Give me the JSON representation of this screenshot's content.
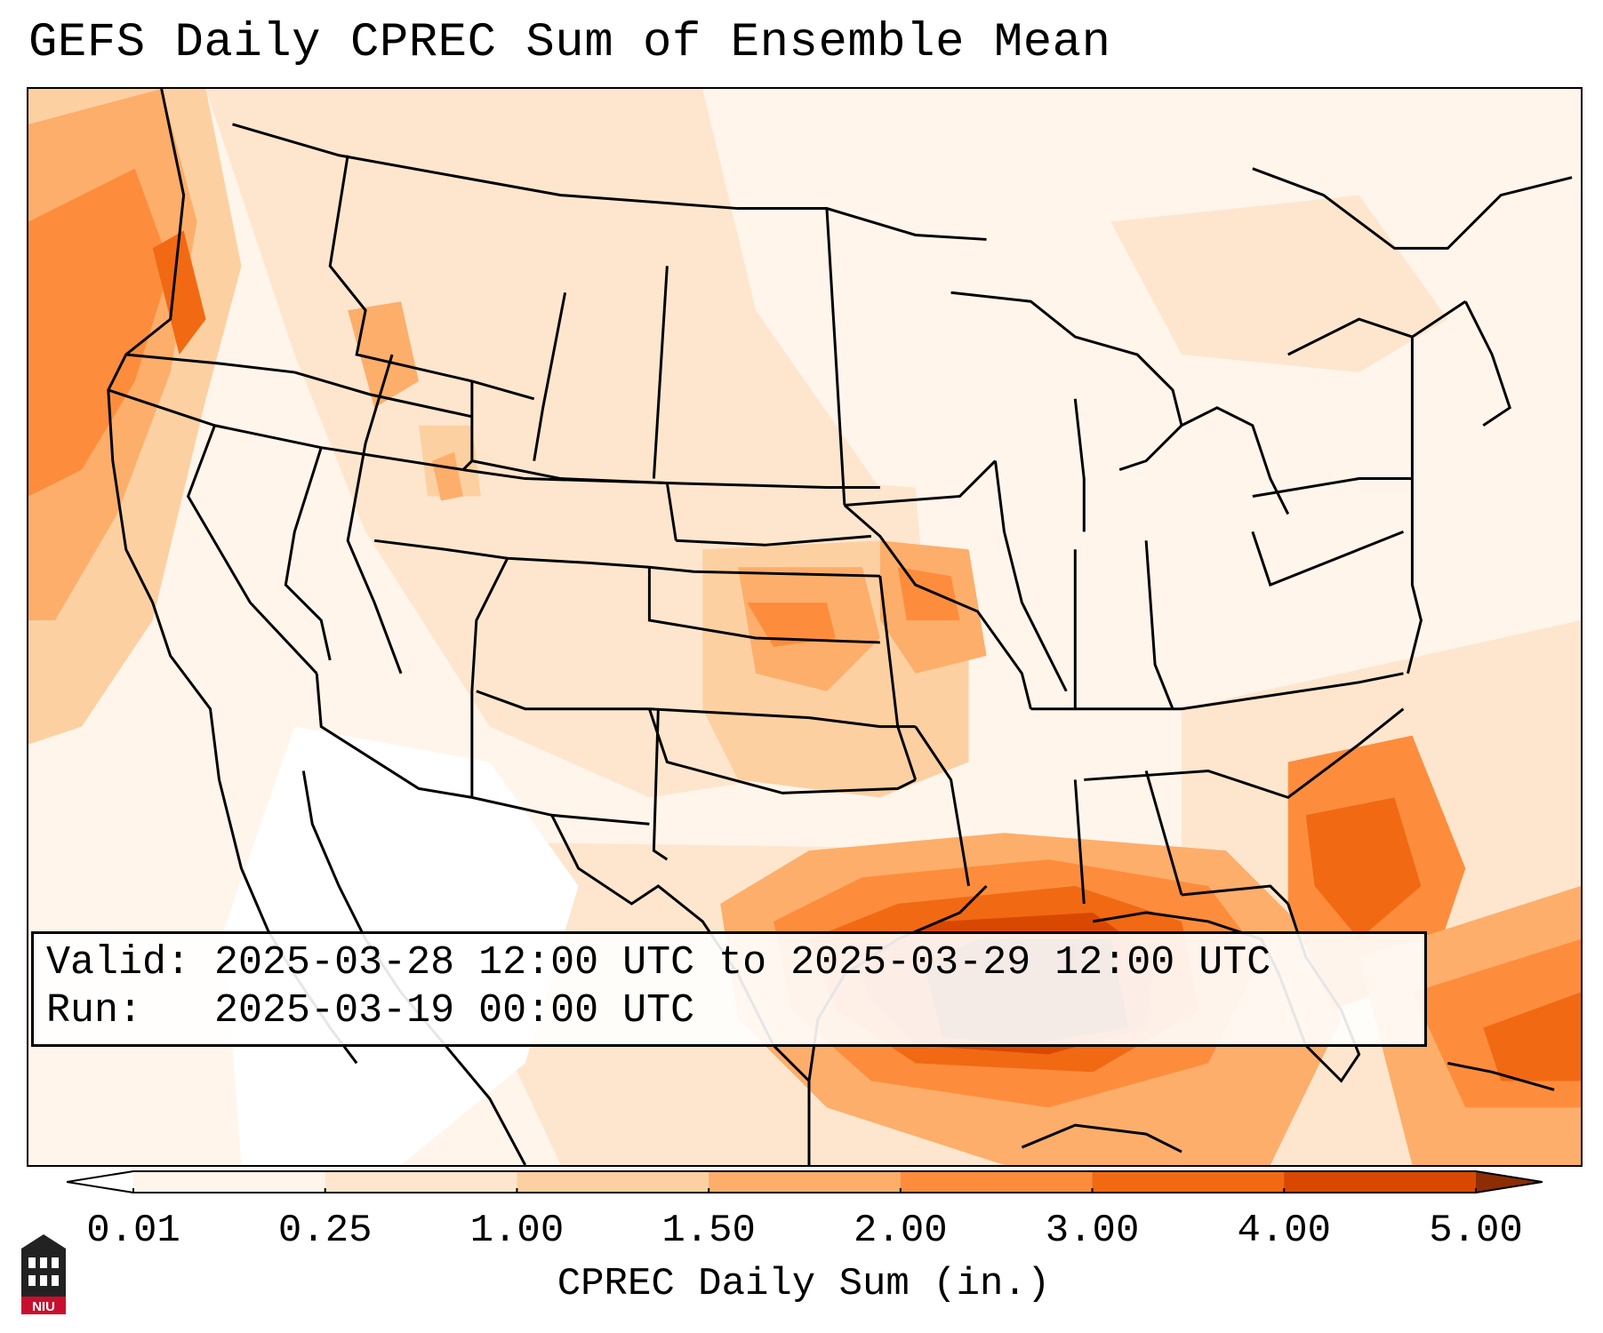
{
  "title": "GEFS Daily CPREC Sum of Ensemble Mean",
  "info": {
    "valid_label": "Valid:",
    "valid_value": "2025-03-28 12:00 UTC to 2025-03-29 12:00 UTC",
    "run_label": "Run:",
    "run_value": "2025-03-19 00:00 UTC"
  },
  "colorbar": {
    "label": "CPREC Daily Sum (in.)",
    "ticks": [
      "0.01",
      "0.25",
      "1.00",
      "1.50",
      "2.00",
      "3.00",
      "4.00",
      "5.00"
    ],
    "colors": [
      "#fff5eb",
      "#fee6ce",
      "#fdd0a2",
      "#fdae6b",
      "#fd8d3c",
      "#f16913",
      "#d94801",
      "#8c2d04"
    ]
  },
  "logo": {
    "text": "NIU"
  }
}
